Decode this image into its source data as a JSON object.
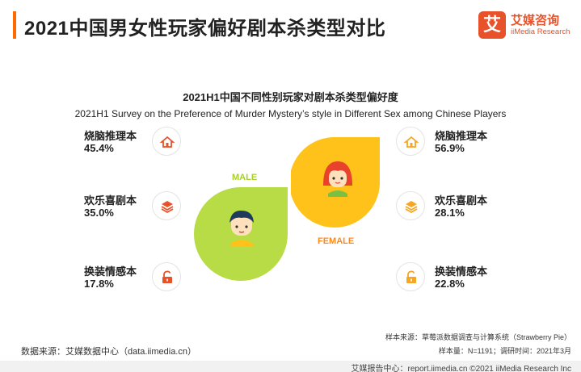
{
  "header": {
    "title": "2021中国男女性玩家偏好剧本杀类型对比",
    "logo_mark": "艾",
    "logo_cn": "艾媒咨询",
    "logo_en": "iiMedia Research"
  },
  "chart_data": {
    "type": "comparison",
    "title": "2021H1中国不同性别玩家对剧本杀类型偏好度",
    "subtitle": "2021H1 Survey on the Preference of Murder Mystery’s style in Different Sex among Chinese Players",
    "categories": [
      "烧脑推理本",
      "欢乐喜剧本",
      "换装情感本"
    ],
    "series": [
      {
        "name": "MALE",
        "values": [
          45.4,
          35.0,
          17.8
        ],
        "display": [
          "45.4%",
          "35.0%",
          "17.8%"
        ],
        "color": "#b7dc46"
      },
      {
        "name": "FEMALE",
        "values": [
          56.9,
          28.1,
          22.8
        ],
        "display": [
          "56.9%",
          "28.1%",
          "22.8%"
        ],
        "color": "#ffc21a"
      }
    ],
    "unit": "%"
  },
  "icons": [
    "house-icon",
    "stack-icon",
    "lock-icon"
  ],
  "colors": {
    "accent": "#ff6a00",
    "male": "#b7dc46",
    "female": "#ffc21a",
    "female_label": "#ff8a1a",
    "male_label": "#a8cf2a",
    "icon_male": "#e8522a",
    "icon_female": "#f5a623"
  },
  "footer": {
    "source": "数据来源：艾媒数据中心（data.iimedia.cn）",
    "sample_source": "样本来源：草莓派数据调查与计算系统（Strawberry Pie）",
    "sample_size": "样本量：N=1191；调研时间：2021年3月",
    "report": "艾媒报告中心：report.iimedia.cn   ©2021  iiMedia Research  Inc"
  }
}
